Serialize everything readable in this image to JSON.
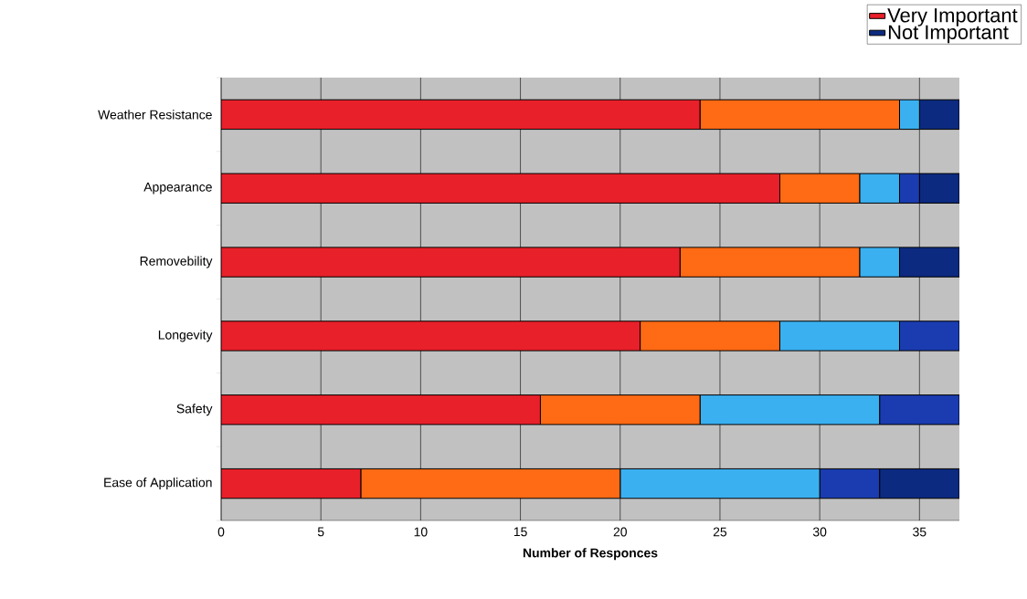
{
  "chart_data": {
    "type": "bar",
    "orientation": "horizontal",
    "stacked": true,
    "categories": [
      "Weather Resistance",
      "Appearance",
      "Removebility",
      "Longevity",
      "Safety",
      "Ease of Application"
    ],
    "series": [
      {
        "name": "Very Important",
        "color": "#e8202a",
        "values": [
          24,
          28,
          23,
          21,
          16,
          7
        ]
      },
      {
        "color": "#ff6a14",
        "values": [
          10,
          4,
          9,
          7,
          8,
          13
        ]
      },
      {
        "color": "#3ab0f0",
        "values": [
          1,
          2,
          2,
          6,
          9,
          10
        ]
      },
      {
        "color": "#1a3cb0",
        "values": [
          0,
          1,
          0,
          3,
          4,
          3
        ]
      },
      {
        "name": "Not Important",
        "color": "#0c2a80",
        "values": [
          2,
          2,
          3,
          0,
          0,
          4
        ]
      }
    ],
    "xlabel": "Number of Responces",
    "xlim": [
      0,
      37
    ],
    "xticks": [
      0,
      5,
      10,
      15,
      20,
      25,
      30,
      35
    ],
    "grid": "x",
    "legend": "top right"
  }
}
